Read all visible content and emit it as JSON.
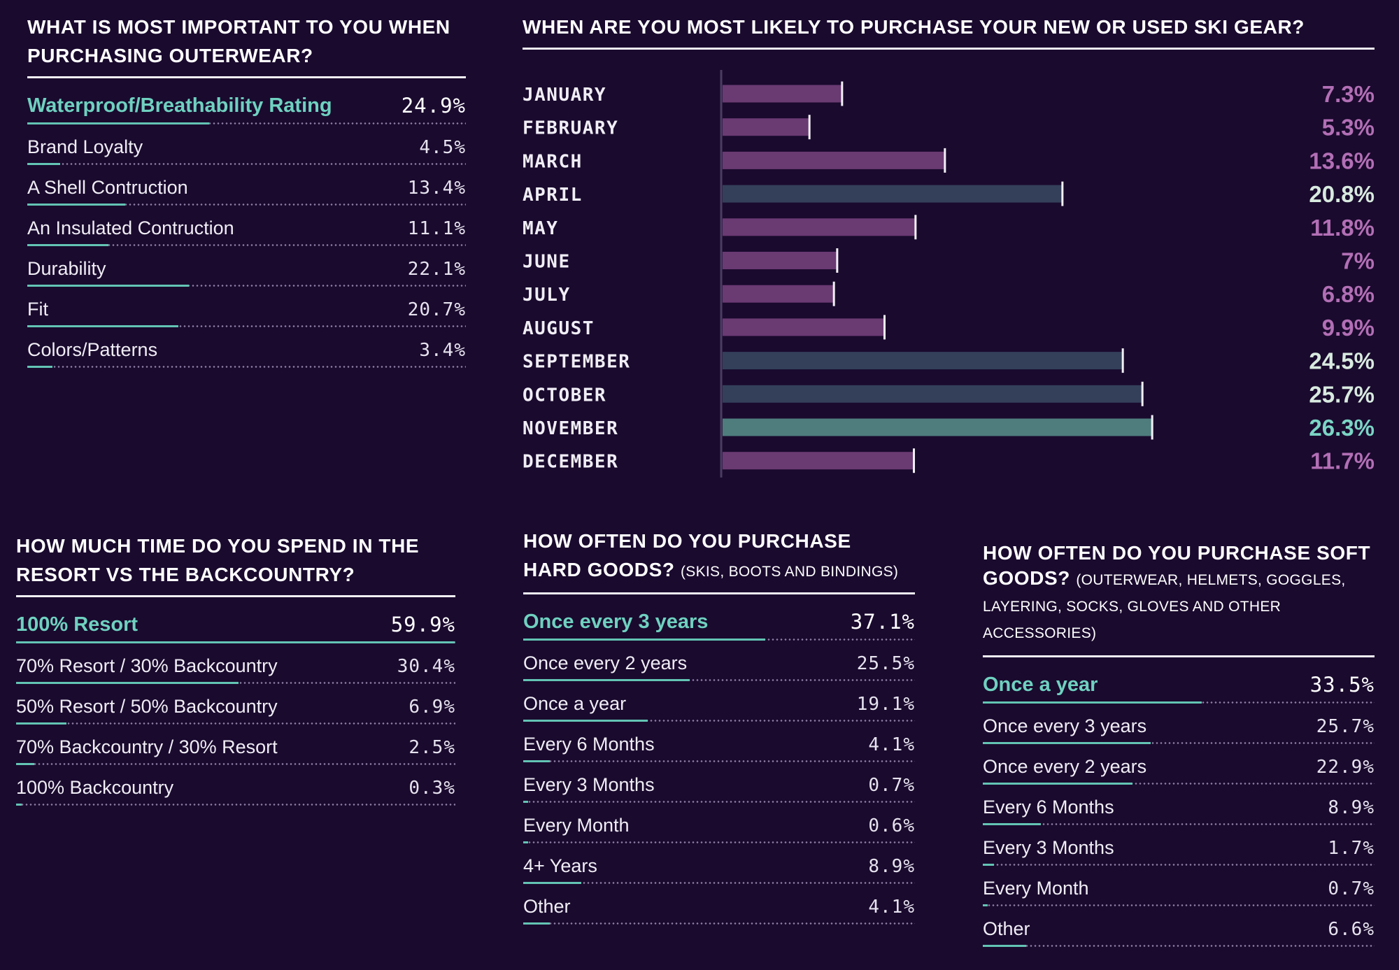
{
  "outerwear": {
    "title": "WHAT IS MOST IMPORTANT TO YOU WHEN PURCHASING OUTERWEAR?",
    "items": [
      {
        "label": "Waterproof/Breathability Rating",
        "value": "24.9%",
        "pct": 24.9
      },
      {
        "label": "Brand Loyalty",
        "value": "4.5%",
        "pct": 4.5
      },
      {
        "label": "A Shell Contruction",
        "value": "13.4%",
        "pct": 13.4
      },
      {
        "label": "An Insulated Contruction",
        "value": "11.1%",
        "pct": 11.1
      },
      {
        "label": "Durability",
        "value": "22.1%",
        "pct": 22.1
      },
      {
        "label": "Fit",
        "value": "20.7%",
        "pct": 20.7
      },
      {
        "label": "Colors/Patterns",
        "value": "3.4%",
        "pct": 3.4
      }
    ]
  },
  "purchase_month": {
    "title": "WHEN ARE YOU MOST LIKELY TO PURCHASE YOUR NEW OR USED SKI GEAR?",
    "value_labels": [
      "7.3%",
      "5.3%",
      "13.6%",
      "20.8%",
      "11.8%",
      "7%",
      "6.8%",
      "9.9%",
      "24.5%",
      "25.7%",
      "26.3%",
      "11.7%"
    ]
  },
  "resort_time": {
    "title": "HOW MUCH TIME DO YOU SPEND IN THE RESORT VS THE BACKCOUNTRY?",
    "items": [
      {
        "label": "100% Resort",
        "value": "59.9%",
        "pct": 59.9
      },
      {
        "label": "70% Resort / 30% Backcountry",
        "value": "30.4%",
        "pct": 30.4
      },
      {
        "label": "50% Resort / 50% Backcountry",
        "value": "6.9%",
        "pct": 6.9
      },
      {
        "label": "70% Backcountry / 30% Resort",
        "value": "2.5%",
        "pct": 2.5
      },
      {
        "label": "100% Backcountry",
        "value": "0.3%",
        "pct": 0.3
      }
    ]
  },
  "hard_goods": {
    "title": "HOW OFTEN DO YOU PURCHASE HARD GOODS?",
    "subtitle": "(SKIS, BOOTS AND BINDINGS)",
    "items": [
      {
        "label": "Once every 3 years",
        "value": "37.1%",
        "pct": 37.1
      },
      {
        "label": "Once every 2 years",
        "value": "25.5%",
        "pct": 25.5
      },
      {
        "label": "Once a year",
        "value": "19.1%",
        "pct": 19.1
      },
      {
        "label": "Every 6 Months",
        "value": "4.1%",
        "pct": 4.1
      },
      {
        "label": "Every 3 Months",
        "value": "0.7%",
        "pct": 0.7
      },
      {
        "label": "Every Month",
        "value": "0.6%",
        "pct": 0.6
      },
      {
        "label": "4+ Years",
        "value": "8.9%",
        "pct": 8.9
      },
      {
        "label": "Other",
        "value": "4.1%",
        "pct": 4.1
      }
    ]
  },
  "soft_goods": {
    "title": "HOW OFTEN DO YOU PURCHASE SOFT GOODS?",
    "subtitle": "(OUTERWEAR, HELMETS, GOGGLES, LAYERING, SOCKS, GLOVES AND OTHER ACCESSORIES)",
    "items": [
      {
        "label": "Once a year",
        "value": "33.5%",
        "pct": 33.5
      },
      {
        "label": "Once every 3 years",
        "value": "25.7%",
        "pct": 25.7
      },
      {
        "label": "Once every 2 years",
        "value": "22.9%",
        "pct": 22.9
      },
      {
        "label": "Every 6 Months",
        "value": "8.9%",
        "pct": 8.9
      },
      {
        "label": "Every 3 Months",
        "value": "1.7%",
        "pct": 1.7
      },
      {
        "label": "Every Month",
        "value": "0.7%",
        "pct": 0.7
      },
      {
        "label": "Other",
        "value": "6.6%",
        "pct": 6.6
      }
    ]
  },
  "colors": {
    "background": "#1a0a2e",
    "accent_teal": "#63c4b4",
    "bar_purple": "#6a3a73",
    "bar_slate": "#34405a",
    "bar_teal": "#4f7d7e",
    "pct_purple": "#b26fb5",
    "pct_light": "#d8eadf",
    "pct_teal": "#7bd5c5"
  },
  "chart_data": {
    "type": "bar",
    "title": "WHEN ARE YOU MOST LIKELY TO PURCHASE YOUR NEW OR USED SKI GEAR?",
    "orientation": "horizontal",
    "categories": [
      "JANUARY",
      "FEBRUARY",
      "MARCH",
      "APRIL",
      "MAY",
      "JUNE",
      "JULY",
      "AUGUST",
      "SEPTEMBER",
      "OCTOBER",
      "NOVEMBER",
      "DECEMBER"
    ],
    "values": [
      7.3,
      5.3,
      13.6,
      20.8,
      11.8,
      7,
      6.8,
      9.9,
      24.5,
      25.7,
      26.3,
      11.7
    ],
    "xlim": [
      0,
      30
    ],
    "grid": false,
    "legend": "none"
  }
}
